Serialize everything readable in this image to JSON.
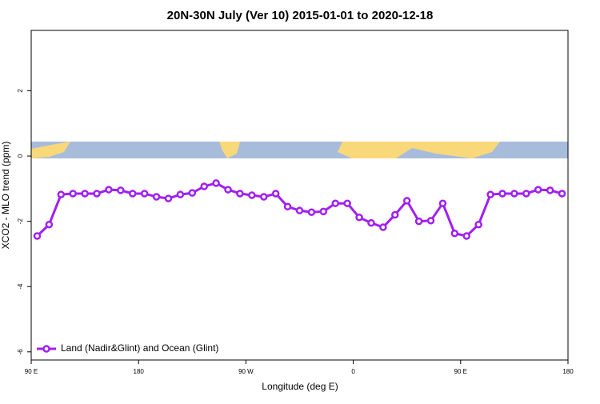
{
  "chart_data": {
    "type": "line",
    "title": "20N-30N July (Ver 10)   2015-01-01 to 2020-12-18",
    "x_label": "Longitude (deg E)",
    "y_label": "XCO2 - MLO trend (ppm)",
    "xlim": [
      90,
      540
    ],
    "xticks": [
      {
        "value": 90,
        "label": "90 E"
      },
      180,
      {
        "value": 270,
        "label": "90 W"
      },
      {
        "value": 360,
        "label": "0"
      },
      {
        "value": 450,
        "label": "90 E"
      },
      {
        "value": 540,
        "label": "180"
      }
    ],
    "ylim": [
      -6.25,
      3.85
    ],
    "yticks": [
      -6,
      -4,
      -2,
      0,
      2
    ],
    "legend": "bottom-left",
    "series": [
      {
        "name": "Land (Nadir&Glint) and Ocean (Glint)",
        "color": "#a020f0",
        "x": [
          95,
          105,
          115,
          125,
          135,
          145,
          155,
          165,
          175,
          185,
          195,
          205,
          215,
          225,
          235,
          245,
          255,
          265,
          275,
          285,
          295,
          305,
          315,
          325,
          335,
          345,
          355,
          365,
          375,
          385,
          395,
          405,
          415,
          425,
          435,
          445,
          455,
          465,
          475,
          485,
          495,
          505,
          515,
          525,
          535
        ],
        "values": [
          -2.45,
          -2.1,
          -1.18,
          -1.15,
          -1.15,
          -1.15,
          -1.03,
          -1.05,
          -1.15,
          -1.15,
          -1.25,
          -1.3,
          -1.18,
          -1.13,
          -0.93,
          -0.83,
          -1.03,
          -1.15,
          -1.2,
          -1.25,
          -1.15,
          -1.55,
          -1.67,
          -1.72,
          -1.7,
          -1.45,
          -1.45,
          -1.88,
          -2.05,
          -2.18,
          -1.8,
          -1.37,
          -2.0,
          -1.98,
          -1.45,
          -2.37,
          -2.45,
          -2.1,
          -1.18,
          -1.15,
          -1.15,
          -1.15,
          -1.03,
          -1.05,
          -1.15
        ]
      }
    ]
  }
}
